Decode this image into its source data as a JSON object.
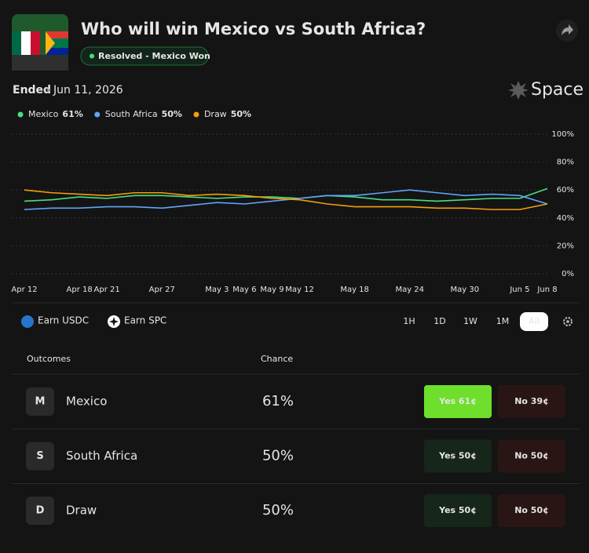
{
  "header": {
    "title": "Who will win Mexico vs South Africa?",
    "status": "Resolved - Mexico Won",
    "ended": "Ended",
    "date": "Jun 11, 2026",
    "brand": "Space"
  },
  "chart_data": {
    "type": "line",
    "x": [
      "Apr 12",
      null,
      "Apr 18",
      "Apr 21",
      null,
      "Apr 27",
      null,
      "May 3",
      "May 6",
      "May 9",
      "May 12",
      null,
      "May 18",
      null,
      "May 24",
      null,
      "May 30",
      null,
      "Jun 5",
      "Jun 8"
    ],
    "series": [
      {
        "name": "Mexico",
        "color": "#4ade80",
        "values": [
          52,
          53,
          55,
          54,
          56,
          56,
          55,
          54,
          55,
          55,
          54,
          56,
          55,
          53,
          53,
          52,
          53,
          54,
          54,
          61
        ]
      },
      {
        "name": "South Africa",
        "color": "#60a5fa",
        "values": [
          46,
          47,
          47,
          48,
          48,
          47,
          49,
          51,
          50,
          52,
          54,
          56,
          56,
          58,
          60,
          58,
          56,
          57,
          56,
          50
        ]
      },
      {
        "name": "Draw",
        "color": "#f59e0b",
        "values": [
          60,
          58,
          57,
          56,
          58,
          58,
          56,
          57,
          56,
          54,
          53,
          50,
          48,
          48,
          48,
          47,
          47,
          46,
          46,
          50
        ]
      }
    ],
    "ylim": [
      0,
      100
    ],
    "yticks": [
      {
        "value": 0,
        "label": "0%"
      },
      {
        "value": 20,
        "label": "20%"
      },
      {
        "value": 40,
        "label": "40%"
      },
      {
        "value": 60,
        "label": "60%"
      },
      {
        "value": 80,
        "label": "80%"
      },
      {
        "value": 100,
        "label": "100%"
      }
    ],
    "grid": true
  },
  "controls": {
    "earn": [
      "Earn USDC",
      "Earn SPC"
    ],
    "ranges": [
      "1H",
      "1D",
      "1W",
      "1M",
      "All"
    ],
    "active_range": 4
  },
  "table": {
    "headers": [
      "Outcomes",
      "Chance"
    ],
    "rows": [
      {
        "letter": "M",
        "name": "Mexico",
        "chance": "61%",
        "yes": "Yes 61¢",
        "no": "No 39¢",
        "resolved": true
      },
      {
        "letter": "S",
        "name": "South Africa",
        "chance": "50%",
        "yes": "Yes 50¢",
        "no": "No 50¢",
        "resolved": false
      },
      {
        "letter": "D",
        "name": "Draw",
        "chance": "50%",
        "yes": "Yes 50¢",
        "no": "No 50¢",
        "resolved": false
      }
    ]
  }
}
